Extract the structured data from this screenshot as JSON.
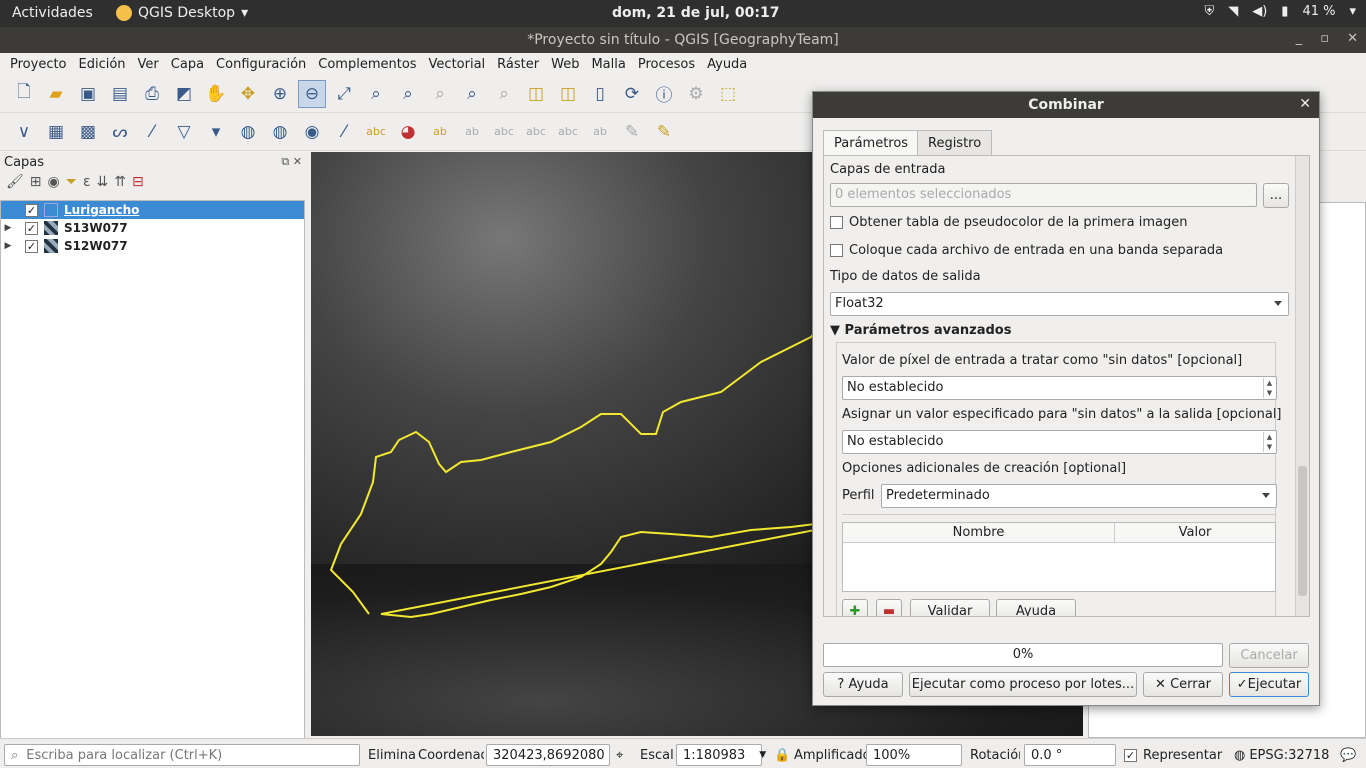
{
  "topbar": {
    "activities": "Actividades",
    "app_name": "QGIS Desktop",
    "app_arrow": "▾",
    "clock": "dom, 21 de jul, 00:17",
    "battery": "41 %",
    "tray_icons": [
      "shield-icon",
      "wifi-icon",
      "volume-icon",
      "battery-icon"
    ]
  },
  "window": {
    "title": "*Proyecto sin título - QGIS [GeographyTeam]",
    "min": "_",
    "max": "▫",
    "close": "✕"
  },
  "menu": [
    "Proyecto",
    "Edición",
    "Ver",
    "Capa",
    "Configuración",
    "Complementos",
    "Vectorial",
    "Ráster",
    "Web",
    "Malla",
    "Procesos",
    "Ayuda"
  ],
  "toolbar1_icons": [
    "new-project-icon",
    "open-project-icon",
    "save-project-icon",
    "save-as-icon",
    "print-layout-icon",
    "style-manager-icon",
    "pan-icon",
    "pan-to-selection-icon",
    "zoom-in-icon",
    "zoom-out-icon",
    "zoom-full-icon",
    "zoom-to-selection-icon",
    "zoom-to-layer-icon",
    "zoom-native-icon",
    "zoom-last-icon",
    "zoom-next-icon",
    "new-bookmark-icon",
    "show-bookmarks-icon",
    "temporal-controller-icon",
    "refresh-icon",
    "identify-icon",
    "actions-icon",
    "select-icon"
  ],
  "toolbar2_icons": [
    "digitize-icon",
    "new-raster-icon",
    "new-geopackage-icon",
    "vector-add-icon",
    "new-shapefile-icon",
    "new-spatialite-icon",
    "add-layer-icon",
    "add-wms-icon",
    "add-wfs-icon",
    "add-vector-tile-icon",
    "add-xyz-icon",
    "label-icon",
    "diagram-icon",
    "label-highlight-icon",
    "pin-label-icon",
    "show-label-icon",
    "move-label-icon",
    "rotate-label-icon",
    "change-label-icon",
    "edit-icon",
    "pencil-icon"
  ],
  "layers": {
    "title": "Capas",
    "header_buttons": [
      "⧉",
      "✕"
    ],
    "toolbar_icons": [
      "open-style-icon",
      "add-group-icon",
      "visibility-icon",
      "filter-icon",
      "expression-icon",
      "expand-icon",
      "collapse-icon",
      "remove-icon"
    ],
    "items": [
      {
        "name": "Lurigancho",
        "checked": "✓",
        "arrow": "",
        "selected": true
      },
      {
        "name": "S13W077",
        "checked": "✓",
        "arrow": "▶",
        "selected": false
      },
      {
        "name": "S12W077",
        "checked": "✓",
        "arrow": "▶",
        "selected": false
      }
    ]
  },
  "dialog": {
    "title": "Combinar",
    "close": "✕",
    "tabs": [
      "Parámetros",
      "Registro"
    ],
    "input_layers_label": "Capas de entrada",
    "input_layers_value": "0 elementos seleccionados",
    "browse": "...",
    "pct_label": "Obtener tabla de pseudocolor de la primera imagen",
    "separate_label": "Coloque cada archivo de entrada en una banda separada",
    "dtype_label": "Tipo de datos de salida",
    "dtype_value": "Float32",
    "advanced_label": "Parámetros avanzados",
    "nodata_in_label": "Valor de píxel de entrada a tratar como \"sin datos\" [opcional]",
    "nodata_in_value": "No establecido",
    "nodata_out_label": "Asignar un valor especificado para \"sin datos\" a la salida [opcional]",
    "nodata_out_value": "No establecido",
    "creation_label": "Opciones adicionales de creación [optional]",
    "profile_label": "Perfil",
    "profile_value": "Predeterminado",
    "table_headers": [
      "Nombre",
      "Valor"
    ],
    "validate": "Validar",
    "help_small": "Ayuda",
    "progress": "0%",
    "progress_value": 0,
    "cancel": "Cancelar",
    "help": "Ayuda",
    "batch": "Ejecutar como proceso por lotes...",
    "close_btn": "Cerrar",
    "run": "Ejecutar"
  },
  "status": {
    "search_placeholder": "Escriba para localizar (Ctrl+K)",
    "elimina": "Elimina",
    "coord_label": "Coordenad",
    "coord_value": "320423,8692080",
    "scale_label": "Escala",
    "scale_value": "1:180983",
    "magnify_label": "Amplificado",
    "magnify_value": "100%",
    "rotation_label": "Rotación",
    "rotation_value": "0.0 °",
    "render_label": "Representar",
    "render_checked": "✓",
    "crs": "EPSG:32718"
  }
}
